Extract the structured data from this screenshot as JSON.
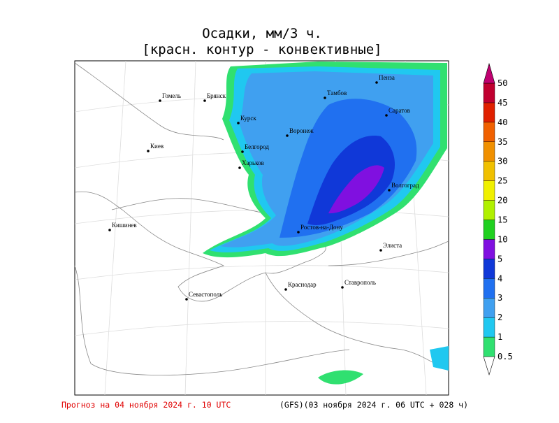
{
  "header": {
    "title": "Осадки, мм/3 ч.",
    "subtitle": "[красн. контур - конвективные]"
  },
  "cities": [
    "Гомель",
    "Брянск",
    "Курск",
    "Воронеж",
    "Тамбов",
    "Пенза",
    "Саратов",
    "Белгород",
    "Харьков",
    "Киев",
    "Волгоград",
    "Кишинев",
    "Ростов-на-Дону",
    "Элиста",
    "Краснодар",
    "Ставрополь",
    "Севастополь"
  ],
  "colorbar": {
    "levels": [
      0.5,
      1,
      2,
      3,
      4,
      5,
      10,
      15,
      20,
      25,
      30,
      35,
      40,
      45,
      50
    ],
    "colors": [
      "#ffffff",
      "#30e070",
      "#20c8f0",
      "#40a0f0",
      "#2070f0",
      "#1038d8",
      "#8010e0",
      "#20d020",
      "#b0f000",
      "#f0f000",
      "#f0c000",
      "#f09000",
      "#f06000",
      "#e02000",
      "#c00030",
      "#c00070"
    ]
  },
  "footer": {
    "forecast": "Прогноз на 04 ноября 2024 г. 10 UTC",
    "model": "(GFS)(03 ноября 2024 г. 06 UTC + 028 ч)"
  }
}
